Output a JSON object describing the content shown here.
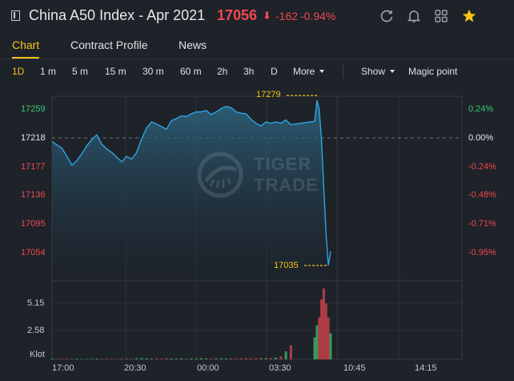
{
  "header": {
    "title": "China A50 Index - Apr 2021",
    "price": "17056",
    "arrow": "⬇",
    "change": "-162",
    "change_pct": "-0.94%",
    "icons": [
      "refresh-icon",
      "bell-icon",
      "grid-icon",
      "star-icon"
    ],
    "accent_color": "#f5c518",
    "down_color": "#f0484e",
    "up_color": "#37c871"
  },
  "tabs": [
    {
      "label": "Chart",
      "active": true
    },
    {
      "label": "Contract Profile",
      "active": false
    },
    {
      "label": "News",
      "active": false
    }
  ],
  "periods": {
    "items": [
      "1D",
      "1 m",
      "5 m",
      "15 m",
      "30 m",
      "60 m",
      "2h",
      "3h",
      "D"
    ],
    "active": "1D",
    "more_label": "More",
    "show_label": "Show",
    "magic_label": "Magic point"
  },
  "price_axis": {
    "labels": [
      "17259",
      "17218",
      "17177",
      "17136",
      "17095",
      "17054"
    ],
    "pct_labels": [
      "0.24%",
      "0.00%",
      "-0.24%",
      "-0.48%",
      "-0.71%",
      "-0.95%"
    ]
  },
  "volume_axis": {
    "labels": [
      "5.15",
      "2.58",
      "Klot"
    ]
  },
  "time_axis": {
    "labels": [
      "17:00",
      "20:30",
      "00:00",
      "03:30",
      "10:45",
      "14:15"
    ]
  },
  "callouts": {
    "high": "17279",
    "low": "17035"
  },
  "watermark": {
    "line1": "TIGER",
    "line2": "TRADE"
  },
  "chart_data": {
    "type": "line",
    "series": [
      {
        "values": [
          17218,
          17213,
          17208,
          17196,
          17183,
          17190,
          17200,
          17212,
          17221,
          17228,
          17214,
          17207,
          17202,
          17195,
          17188,
          17196,
          17192,
          17202,
          17222,
          17238,
          17247,
          17244,
          17240,
          17236,
          17249,
          17252,
          17256,
          17255,
          17259,
          17262,
          17262,
          17264,
          17258,
          17262,
          17267,
          17270,
          17268,
          17262,
          17260,
          17259,
          17251,
          17245,
          17241,
          17247,
          17245,
          17247,
          17245,
          17250,
          17243,
          17248,
          17279,
          17266,
          17220,
          17150,
          17080,
          17035,
          17056
        ]
      }
    ],
    "x_labels": [
      "17:00",
      "20:30",
      "00:00",
      "03:30",
      "10:45",
      "14:15"
    ],
    "reference_price": 17218,
    "ylim": [
      17030,
      17285
    ],
    "high": 17279,
    "low": 17035,
    "volume": {
      "ylim": [
        0,
        7.7
      ],
      "tick_labels": [
        "5.15",
        "2.58"
      ],
      "unit": "Klot",
      "values": [
        0.08,
        0.05,
        0.04,
        0.06,
        0.05,
        0.07,
        0.04,
        0.05,
        0.06,
        0.08,
        0.05,
        0.06,
        0.04,
        0.05,
        0.07,
        0.06,
        0.05,
        0.1,
        0.12,
        0.1,
        0.09,
        0.08,
        0.07,
        0.11,
        0.09,
        0.08,
        0.1,
        0.07,
        0.09,
        0.08,
        0.12,
        0.09,
        0.08,
        0.1,
        0.11,
        0.09,
        0.08,
        0.07,
        0.12,
        0.11,
        0.1,
        0.12,
        0.14,
        0.13,
        0.12,
        0.18,
        0.3,
        0.8,
        1.4,
        2.2,
        3.4,
        4.2,
        6.0,
        7.1,
        5.6,
        4.2,
        2.6
      ]
    }
  }
}
